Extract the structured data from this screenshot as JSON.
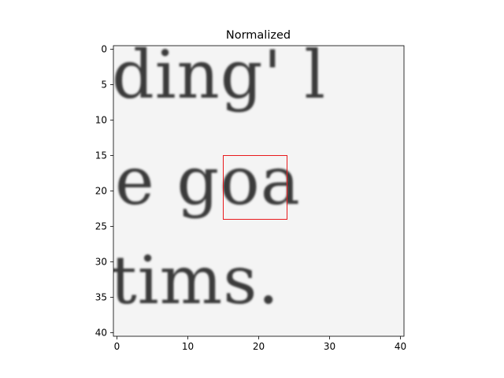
{
  "chart_data": {
    "type": "heatmap",
    "title": "Normalized",
    "image_description_text_rows": [
      "ding' l",
      "e goa",
      "tims."
    ],
    "x_ticks": [
      0,
      10,
      20,
      30,
      40
    ],
    "y_ticks": [
      0,
      5,
      10,
      15,
      20,
      25,
      30,
      35,
      40
    ],
    "xlim": [
      -0.5,
      40.5
    ],
    "ylim": [
      40.5,
      -0.5
    ],
    "grid": false,
    "colormap": "gray",
    "highlight_box": {
      "x0": 15,
      "y0": 15,
      "x1": 24,
      "y1": 24,
      "color": "#e8191c"
    }
  }
}
